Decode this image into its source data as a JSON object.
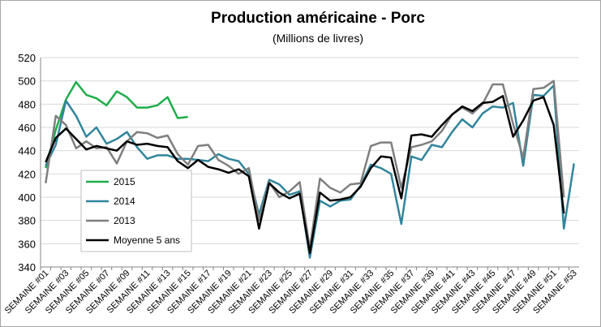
{
  "chart_data": {
    "type": "line",
    "title": "Production américaine - Porc",
    "subtitle": "(Millions de livres)",
    "categories": [
      "SEMAINE #01",
      null,
      "SEMAINE #03",
      null,
      "SEMAINE #05",
      null,
      "SEMAINE #07",
      null,
      "SEMAINE #09",
      null,
      "SEMAINE #11",
      null,
      "SEMAINE #13",
      null,
      "SEMAINE #15",
      null,
      "SEMAINE #17",
      null,
      "SEMAINE #19",
      null,
      "SEMAINE #21",
      null,
      "SEMAINE #23",
      null,
      "SEMAINE #25",
      null,
      "SEMAINE #27",
      null,
      "SEMAINE #29",
      null,
      "SEMAINE #31",
      null,
      "SEMAINE #33",
      null,
      "SEMAINE #35",
      null,
      "SEMAINE #37",
      null,
      "SEMAINE #39",
      null,
      "SEMAINE #41",
      null,
      "SEMAINE #43",
      null,
      "SEMAINE #45",
      null,
      "SEMAINE #47",
      null,
      "SEMAINE #49",
      null,
      "SEMAINE #51",
      null,
      "SEMAINE #53"
    ],
    "series": [
      {
        "name": "2015",
        "color": "#1fad4b",
        "values": [
          425,
          458,
          484,
          499,
          488,
          485,
          479,
          491,
          486,
          477,
          477,
          479,
          486,
          468,
          469,
          null,
          null,
          null,
          null,
          null,
          null,
          null,
          null,
          null,
          null,
          null,
          null,
          null,
          null,
          null,
          null,
          null,
          null,
          null,
          null,
          null,
          null,
          null,
          null,
          null,
          null,
          null,
          null,
          null,
          null,
          null,
          null,
          null,
          null,
          null,
          null,
          null,
          null
        ]
      },
      {
        "name": "2014",
        "color": "#31859c",
        "values": [
          427,
          445,
          483,
          470,
          452,
          460,
          446,
          450,
          456,
          443,
          433,
          436,
          436,
          433,
          433,
          432,
          431,
          437,
          433,
          431,
          420,
          385,
          415,
          411,
          402,
          405,
          348,
          397,
          392,
          397,
          398,
          410,
          428,
          425,
          420,
          377,
          435,
          432,
          445,
          443,
          456,
          467,
          460,
          472,
          478,
          477,
          481,
          427,
          488,
          487,
          496,
          373,
          429
        ]
      },
      {
        "name": "2013",
        "color": "#7f7f7f",
        "values": [
          412,
          470,
          462,
          442,
          448,
          442,
          443,
          429,
          448,
          456,
          455,
          451,
          453,
          437,
          428,
          444,
          445,
          432,
          427,
          420,
          425,
          380,
          413,
          400,
          405,
          413,
          356,
          416,
          408,
          404,
          411,
          412,
          444,
          447,
          447,
          408,
          443,
          445,
          448,
          457,
          471,
          477,
          472,
          480,
          497,
          497,
          463,
          434,
          493,
          494,
          500,
          400,
          null
        ]
      },
      {
        "name": "Moyenne 5 ans",
        "color": "#000000",
        "values": [
          430,
          451,
          459,
          450,
          441,
          444,
          442,
          440,
          448,
          445,
          446,
          444,
          443,
          431,
          425,
          432,
          426,
          424,
          421,
          424,
          418,
          373,
          412,
          404,
          399,
          403,
          352,
          404,
          397,
          398,
          400,
          409,
          425,
          435,
          434,
          399,
          453,
          454,
          452,
          462,
          471,
          478,
          474,
          481,
          482,
          487,
          452,
          466,
          483,
          486,
          462,
          386,
          null
        ]
      }
    ],
    "ylim": [
      340,
      520
    ],
    "yticks": [
      340,
      360,
      380,
      400,
      420,
      440,
      460,
      480,
      500,
      520
    ],
    "grid": true,
    "legend": "left"
  }
}
